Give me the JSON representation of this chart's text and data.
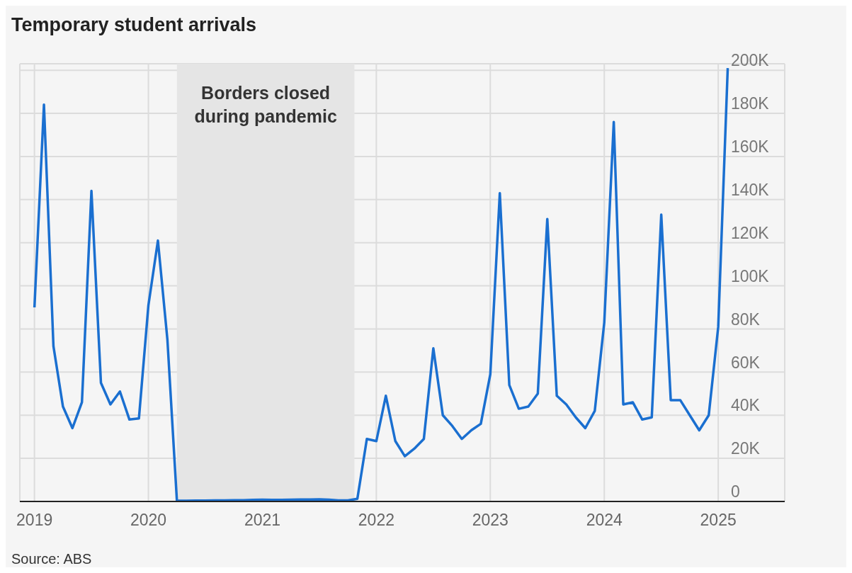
{
  "chart_data": {
    "type": "line",
    "title": "Temporary student arrivals",
    "x": [
      "2019-01",
      "2019-02",
      "2019-03",
      "2019-04",
      "2019-05",
      "2019-06",
      "2019-07",
      "2019-08",
      "2019-09",
      "2019-10",
      "2019-11",
      "2019-12",
      "2020-01",
      "2020-02",
      "2020-03",
      "2020-04",
      "2020-05",
      "2020-06",
      "2020-07",
      "2020-08",
      "2020-09",
      "2020-10",
      "2020-11",
      "2020-12",
      "2021-01",
      "2021-02",
      "2021-03",
      "2021-04",
      "2021-05",
      "2021-06",
      "2021-07",
      "2021-08",
      "2021-09",
      "2021-10",
      "2021-11",
      "2021-12",
      "2022-01",
      "2022-02",
      "2022-03",
      "2022-04",
      "2022-05",
      "2022-06",
      "2022-07",
      "2022-08",
      "2022-09",
      "2022-10",
      "2022-11",
      "2022-12",
      "2023-01",
      "2023-02",
      "2023-03",
      "2023-04",
      "2023-05",
      "2023-06",
      "2023-07",
      "2023-08",
      "2023-09",
      "2023-10",
      "2023-11",
      "2023-12",
      "2024-01",
      "2024-02",
      "2024-03",
      "2024-04",
      "2024-05",
      "2024-06",
      "2024-07",
      "2024-08",
      "2024-09",
      "2024-10",
      "2024-11",
      "2024-12",
      "2025-01",
      "2025-02"
    ],
    "series": [
      {
        "color": "#1a6fd0",
        "values": [
          90000,
          184000,
          72000,
          44000,
          34000,
          46000,
          144000,
          55000,
          45000,
          51000,
          38000,
          38500,
          91000,
          121000,
          75000,
          300,
          300,
          400,
          400,
          500,
          500,
          600,
          600,
          700,
          800,
          700,
          700,
          800,
          900,
          900,
          1000,
          800,
          500,
          500,
          1200,
          29000,
          28000,
          49000,
          28000,
          21000,
          24500,
          29000,
          71000,
          40000,
          35000,
          29000,
          33000,
          36000,
          59000,
          143000,
          54000,
          43000,
          44000,
          50000,
          131000,
          49000,
          45000,
          39000,
          34000,
          42000,
          83000,
          176000,
          45000,
          46000,
          38000,
          39000,
          133000,
          47000,
          47000,
          40000,
          33000,
          40000,
          81000,
          201000
        ]
      }
    ],
    "xlim": [
      "2018-11-15",
      "2025-08"
    ],
    "xticks": [
      "2019",
      "2020",
      "2021",
      "2022",
      "2023",
      "2024",
      "2025"
    ],
    "ylim": [
      0,
      203000
    ],
    "yticks": [
      {
        "value": 0,
        "label": "0"
      },
      {
        "value": 20000,
        "label": "20K"
      },
      {
        "value": 40000,
        "label": "40K"
      },
      {
        "value": 60000,
        "label": "60K"
      },
      {
        "value": 80000,
        "label": "80K"
      },
      {
        "value": 100000,
        "label": "100K"
      },
      {
        "value": 120000,
        "label": "120K"
      },
      {
        "value": 140000,
        "label": "140K"
      },
      {
        "value": 160000,
        "label": "160K"
      },
      {
        "value": 180000,
        "label": "180K"
      },
      {
        "value": 200000,
        "label": "200K"
      }
    ],
    "bands": [
      {
        "axis": "x",
        "from": "2020-04-01",
        "to": "2021-10-22",
        "label": "Borders closed during pandemic",
        "color": "#e5e5e5"
      }
    ],
    "grid": true,
    "annotations": [
      "Source: ABS"
    ]
  }
}
